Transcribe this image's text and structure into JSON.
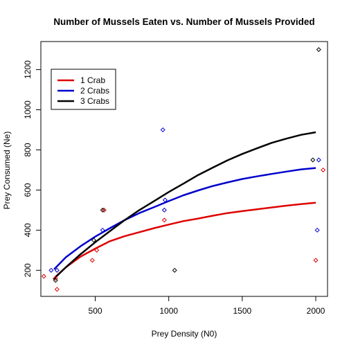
{
  "chart_data": {
    "type": "scatter",
    "title": "Number of Mussels Eaten vs. Number of Mussels Provided",
    "xlabel": "Prey Density (N0)",
    "ylabel": "Prey Consumed (Ne)",
    "xlim": [
      130,
      2080
    ],
    "ylim": [
      70,
      1340
    ],
    "xticks": [
      500,
      1000,
      1500,
      2000
    ],
    "yticks": [
      200,
      400,
      600,
      800,
      1000,
      1200
    ],
    "grid": false,
    "legend_position": "top-left",
    "series": [
      {
        "name": "1 Crab",
        "color": "#df0000",
        "points": [
          [
            150,
            170
          ],
          [
            230,
            160
          ],
          [
            240,
            105
          ],
          [
            480,
            250
          ],
          [
            510,
            300
          ],
          [
            560,
            500
          ],
          [
            970,
            450
          ],
          [
            2000,
            250
          ],
          [
            2050,
            700
          ]
        ],
        "curve": [
          [
            225,
            165
          ],
          [
            300,
            215
          ],
          [
            400,
            268
          ],
          [
            500,
            308
          ],
          [
            600,
            345
          ],
          [
            700,
            370
          ],
          [
            800,
            390
          ],
          [
            900,
            410
          ],
          [
            1000,
            428
          ],
          [
            1100,
            445
          ],
          [
            1200,
            458
          ],
          [
            1300,
            472
          ],
          [
            1400,
            485
          ],
          [
            1500,
            495
          ],
          [
            1600,
            504
          ],
          [
            1700,
            513
          ],
          [
            1800,
            522
          ],
          [
            1900,
            530
          ],
          [
            2000,
            537
          ]
        ]
      },
      {
        "name": "2 Crabs",
        "color": "#0000cc",
        "points": [
          [
            200,
            200
          ],
          [
            240,
            200
          ],
          [
            550,
            400
          ],
          [
            960,
            900
          ],
          [
            970,
            500
          ],
          [
            975,
            550
          ],
          [
            2010,
            400
          ],
          [
            2020,
            750
          ]
        ],
        "curve": [
          [
            220,
            205
          ],
          [
            300,
            265
          ],
          [
            400,
            320
          ],
          [
            500,
            368
          ],
          [
            600,
            410
          ],
          [
            700,
            450
          ],
          [
            800,
            485
          ],
          [
            900,
            515
          ],
          [
            1000,
            545
          ],
          [
            1100,
            574
          ],
          [
            1200,
            598
          ],
          [
            1300,
            620
          ],
          [
            1400,
            638
          ],
          [
            1500,
            655
          ],
          [
            1600,
            668
          ],
          [
            1700,
            680
          ],
          [
            1800,
            692
          ],
          [
            1900,
            703
          ],
          [
            2000,
            710
          ]
        ]
      },
      {
        "name": "3 Crabs",
        "color": "#000000",
        "points": [
          [
            230,
            150
          ],
          [
            490,
            350
          ],
          [
            550,
            500
          ],
          [
            1040,
            200
          ],
          [
            1980,
            750
          ],
          [
            2020,
            1300
          ]
        ],
        "curve": [
          [
            215,
            155
          ],
          [
            300,
            215
          ],
          [
            400,
            280
          ],
          [
            500,
            340
          ],
          [
            600,
            395
          ],
          [
            700,
            450
          ],
          [
            800,
            500
          ],
          [
            900,
            545
          ],
          [
            1000,
            590
          ],
          [
            1100,
            632
          ],
          [
            1200,
            675
          ],
          [
            1300,
            712
          ],
          [
            1400,
            748
          ],
          [
            1500,
            780
          ],
          [
            1600,
            808
          ],
          [
            1700,
            835
          ],
          [
            1800,
            856
          ],
          [
            1900,
            875
          ],
          [
            2000,
            888
          ]
        ]
      }
    ]
  }
}
